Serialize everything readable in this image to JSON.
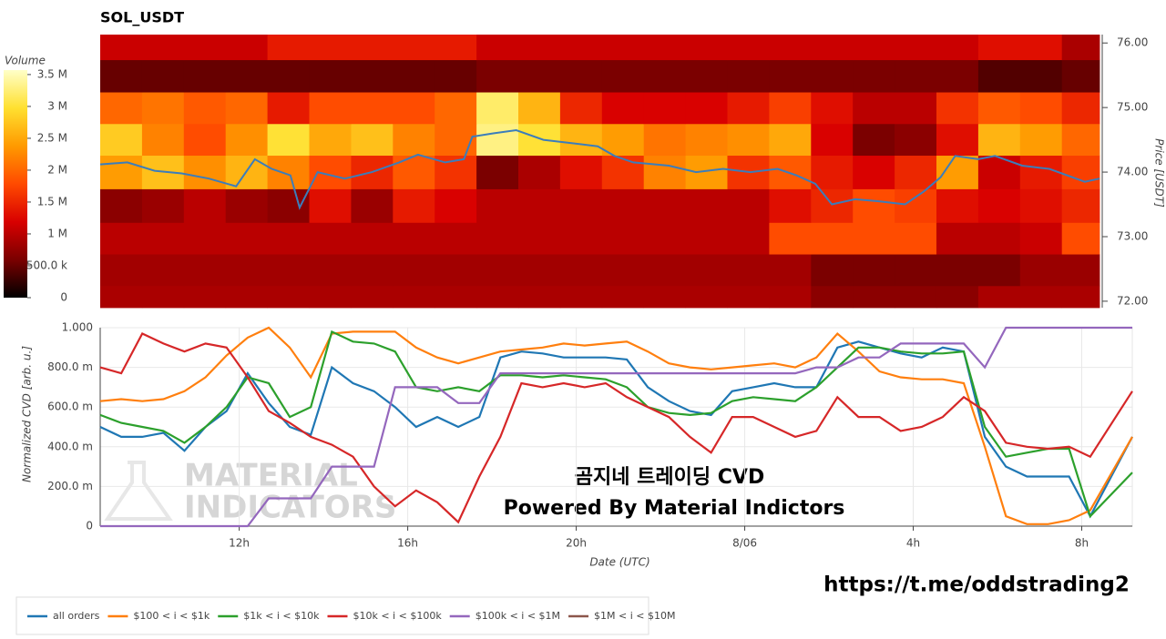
{
  "chart_data": [
    {
      "type": "heatmap",
      "title": "SOL_USDT",
      "xlim": [
        8.7,
        32.6
      ],
      "ylim": [
        71.9,
        76.13
      ],
      "ylabel": "Price [USDT]",
      "yticks": [
        {
          "value": 72,
          "label": "72.00"
        },
        {
          "value": 73,
          "label": "73.00"
        },
        {
          "value": 74,
          "label": "74.00"
        },
        {
          "value": 75,
          "label": "75.00"
        },
        {
          "value": 76,
          "label": "76.00"
        }
      ],
      "x_bins": [
        8.7,
        9.7,
        10.7,
        11.7,
        12.7,
        13.7,
        14.7,
        15.7,
        16.7,
        17.7,
        18.7,
        19.7,
        20.7,
        21.7,
        22.7,
        23.7,
        24.7,
        25.7,
        26.7,
        27.7,
        28.7,
        29.7,
        30.7,
        31.7,
        32.6
      ],
      "y_bins": [
        71.9,
        72.24,
        72.73,
        73.22,
        73.74,
        74.26,
        74.75,
        75.24,
        75.74,
        76.13
      ],
      "values": [
        [
          900000.0,
          900000.0,
          900000.0,
          900000.0,
          900000.0,
          900000.0,
          900000.0,
          900000.0,
          900000.0,
          900000.0,
          900000.0,
          900000.0,
          900000.0,
          900000.0,
          900000.0,
          900000.0,
          900000.0,
          700000.0,
          700000.0,
          700000.0,
          700000.0,
          900000.0,
          900000.0,
          900000.0
        ],
        [
          850000.0,
          850000.0,
          850000.0,
          850000.0,
          850000.0,
          850000.0,
          850000.0,
          850000.0,
          850000.0,
          850000.0,
          850000.0,
          850000.0,
          850000.0,
          850000.0,
          850000.0,
          850000.0,
          850000.0,
          600000.0,
          600000.0,
          600000.0,
          600000.0,
          600000.0,
          800000.0,
          800000.0
        ],
        [
          1000000.0,
          1000000.0,
          1000000.0,
          1000000.0,
          1000000.0,
          1000000.0,
          1000000.0,
          1000000.0,
          1000000.0,
          1000000.0,
          1000000.0,
          1000000.0,
          1000000.0,
          1000000.0,
          1000000.0,
          1000000.0,
          1800000.0,
          1800000.0,
          1800000.0,
          1800000.0,
          1000000.0,
          1000000.0,
          1100000.0,
          1800000.0
        ],
        [
          700000.0,
          800000.0,
          1000000.0,
          800000.0,
          700000.0,
          1300000.0,
          800000.0,
          1400000.0,
          1200000.0,
          1000000.0,
          1000000.0,
          1000000.0,
          1000000.0,
          1000000.0,
          1000000.0,
          1000000.0,
          1300000.0,
          1500000.0,
          1800000.0,
          1700000.0,
          1300000.0,
          1200000.0,
          1300000.0,
          1500000.0
        ],
        [
          2400000.0,
          2700000.0,
          2300000.0,
          2600000.0,
          2200000.0,
          1800000.0,
          1500000.0,
          1900000.0,
          1600000.0,
          600000.0,
          900000.0,
          1300000.0,
          1600000.0,
          2200000.0,
          2400000.0,
          1600000.0,
          1900000.0,
          1400000.0,
          1200000.0,
          1500000.0,
          2400000.0,
          1100000.0,
          1400000.0,
          1700000.0
        ],
        [
          2800000.0,
          2200000.0,
          1800000.0,
          2300000.0,
          3000000.0,
          2500000.0,
          2700000.0,
          2200000.0,
          2000000.0,
          3300000.0,
          3000000.0,
          2600000.0,
          2400000.0,
          2100000.0,
          2200000.0,
          2300000.0,
          2500000.0,
          1200000.0,
          600000.0,
          700000.0,
          1300000.0,
          2600000.0,
          2400000.0,
          2000000.0
        ],
        [
          2000000.0,
          2100000.0,
          1900000.0,
          2000000.0,
          1400000.0,
          1800000.0,
          1800000.0,
          1800000.0,
          2000000.0,
          3200000.0,
          2600000.0,
          1500000.0,
          1200000.0,
          1200000.0,
          1200000.0,
          1400000.0,
          1700000.0,
          1300000.0,
          1000000.0,
          1000000.0,
          1600000.0,
          1900000.0,
          1800000.0,
          1500000.0
        ],
        [
          500000.0,
          500000.0,
          500000.0,
          500000.0,
          500000.0,
          500000.0,
          500000.0,
          500000.0,
          500000.0,
          600000.0,
          600000.0,
          600000.0,
          600000.0,
          600000.0,
          600000.0,
          600000.0,
          600000.0,
          600000.0,
          600000.0,
          600000.0,
          600000.0,
          400000.0,
          400000.0,
          500000.0
        ],
        [
          1100000.0,
          1100000.0,
          1100000.0,
          1100000.0,
          1400000.0,
          1400000.0,
          1400000.0,
          1400000.0,
          1400000.0,
          1100000.0,
          1100000.0,
          1100000.0,
          1100000.0,
          1100000.0,
          1100000.0,
          1100000.0,
          1100000.0,
          1100000.0,
          1100000.0,
          1100000.0,
          1100000.0,
          1300000.0,
          1300000.0,
          900000.0
        ]
      ],
      "colorbar": {
        "label": "Volume",
        "lim": [
          0,
          3570000
        ],
        "colors": [
          "#000000",
          "#7a0000",
          "#d80000",
          "#ff4a00",
          "#ff9a00",
          "#ffe030",
          "#ffffc8"
        ],
        "ticks": [
          0,
          {
            "value": 500000,
            "label": "500.0 k"
          },
          {
            "value": 1000000,
            "label": "1 M"
          },
          {
            "value": 1500000,
            "label": "1.5 M"
          },
          {
            "value": 2000000,
            "label": "2 M"
          },
          {
            "value": 2500000,
            "label": "2.5 M"
          },
          {
            "value": 3000000,
            "label": "3 M"
          },
          {
            "value": 3500000,
            "label": "3.5 M"
          }
        ]
      },
      "price_line": {
        "color": "#3b7dbb",
        "x": [
          8.7,
          9.35,
          10.0,
          10.65,
          11.3,
          11.95,
          12.4,
          12.8,
          13.25,
          13.47,
          13.9,
          14.55,
          15.2,
          15.85,
          16.3,
          16.95,
          17.4,
          17.6,
          18.1,
          18.65,
          19.3,
          19.95,
          20.6,
          21.0,
          21.45,
          22.3,
          22.95,
          23.6,
          24.25,
          24.9,
          25.35,
          25.8,
          26.2,
          26.75,
          27.3,
          27.95,
          28.4,
          28.8,
          29.15,
          29.7,
          30.1,
          30.75,
          31.4,
          32.25,
          32.6
        ],
        "values": [
          74.12,
          74.15,
          74.02,
          73.98,
          73.9,
          73.78,
          74.2,
          74.05,
          73.95,
          73.45,
          74.0,
          73.9,
          74.0,
          74.15,
          74.27,
          74.15,
          74.2,
          74.55,
          74.6,
          74.65,
          74.5,
          74.45,
          74.4,
          74.25,
          74.15,
          74.1,
          74.0,
          74.05,
          74.0,
          74.05,
          73.95,
          73.82,
          73.5,
          73.58,
          73.55,
          73.5,
          73.7,
          73.92,
          74.25,
          74.2,
          74.25,
          74.1,
          74.05,
          73.85,
          73.9
        ]
      }
    },
    {
      "type": "line",
      "xlabel": "Date (UTC)",
      "ylabel": "Normalized CVD [arb. u.]",
      "xlim": [
        8.7,
        33.2
      ],
      "ylim": [
        0,
        1
      ],
      "grid": true,
      "legend": "bottom",
      "xticks": [
        {
          "value": 12,
          "label": "12h"
        },
        {
          "value": 16,
          "label": "16h"
        },
        {
          "value": 20,
          "label": "20h"
        },
        {
          "value": 24,
          "label": "8/06"
        },
        {
          "value": 28,
          "label": "4h"
        },
        {
          "value": 32,
          "label": "8h"
        }
      ],
      "yticks": [
        0,
        {
          "value": 0.2,
          "label": "200.0 m"
        },
        {
          "value": 0.4,
          "label": "400.0 m"
        },
        {
          "value": 0.6,
          "label": "600.0 m"
        },
        {
          "value": 0.8,
          "label": "800.0 m"
        },
        {
          "value": 1,
          "label": "1.000"
        }
      ],
      "x": [
        8.7,
        9.2,
        9.7,
        10.2,
        10.7,
        11.2,
        11.7,
        12.2,
        12.7,
        13.2,
        13.7,
        14.2,
        14.7,
        15.2,
        15.7,
        16.2,
        16.7,
        17.2,
        17.7,
        18.2,
        18.7,
        19.2,
        19.7,
        20.2,
        20.7,
        21.2,
        21.7,
        22.2,
        22.7,
        23.2,
        23.7,
        24.2,
        24.7,
        25.2,
        25.7,
        26.2,
        26.7,
        27.2,
        27.7,
        28.2,
        28.7,
        29.2,
        29.7,
        30.2,
        30.7,
        31.2,
        31.7,
        32.2,
        33.2
      ],
      "series": [
        {
          "name": "all orders",
          "color": "#1f77b4",
          "values": [
            0.5,
            0.45,
            0.45,
            0.47,
            0.38,
            0.5,
            0.58,
            0.77,
            0.62,
            0.5,
            0.46,
            0.8,
            0.72,
            0.68,
            0.6,
            0.5,
            0.55,
            0.5,
            0.55,
            0.85,
            0.88,
            0.87,
            0.85,
            0.85,
            0.85,
            0.84,
            0.7,
            0.63,
            0.58,
            0.56,
            0.68,
            0.7,
            0.72,
            0.7,
            0.7,
            0.9,
            0.93,
            0.9,
            0.87,
            0.85,
            0.9,
            0.88,
            0.45,
            0.3,
            0.25,
            0.25,
            0.25,
            0.05,
            0.45
          ]
        },
        {
          "name": "$100 < i < $1k",
          "color": "#ff7f0e",
          "values": [
            0.63,
            0.64,
            0.63,
            0.64,
            0.68,
            0.75,
            0.86,
            0.95,
            1,
            0.9,
            0.75,
            0.97,
            0.98,
            0.98,
            0.98,
            0.9,
            0.85,
            0.82,
            0.85,
            0.88,
            0.89,
            0.9,
            0.92,
            0.91,
            0.92,
            0.93,
            0.88,
            0.82,
            0.8,
            0.79,
            0.8,
            0.81,
            0.82,
            0.8,
            0.85,
            0.97,
            0.88,
            0.78,
            0.75,
            0.74,
            0.74,
            0.72,
            0.4,
            0.05,
            0.01,
            0.01,
            0.03,
            0.08,
            0.45
          ]
        },
        {
          "name": "$1k < i < $10k",
          "color": "#2ca02c",
          "values": [
            0.56,
            0.52,
            0.5,
            0.48,
            0.42,
            0.5,
            0.6,
            0.75,
            0.72,
            0.55,
            0.6,
            0.98,
            0.93,
            0.92,
            0.88,
            0.7,
            0.68,
            0.7,
            0.68,
            0.76,
            0.76,
            0.75,
            0.76,
            0.75,
            0.74,
            0.7,
            0.6,
            0.57,
            0.56,
            0.57,
            0.63,
            0.65,
            0.64,
            0.63,
            0.7,
            0.8,
            0.9,
            0.9,
            0.88,
            0.87,
            0.87,
            0.88,
            0.5,
            0.35,
            0.37,
            0.39,
            0.39,
            0.05,
            0.27
          ]
        },
        {
          "name": "$10k < i < $100k",
          "color": "#d62728",
          "values": [
            0.8,
            0.77,
            0.97,
            0.92,
            0.88,
            0.92,
            0.9,
            0.75,
            0.58,
            0.52,
            0.45,
            0.41,
            0.35,
            0.2,
            0.1,
            0.18,
            0.12,
            0.02,
            0.25,
            0.45,
            0.72,
            0.7,
            0.72,
            0.7,
            0.72,
            0.65,
            0.6,
            0.55,
            0.45,
            0.37,
            0.55,
            0.55,
            0.5,
            0.45,
            0.48,
            0.65,
            0.55,
            0.55,
            0.48,
            0.5,
            0.55,
            0.65,
            0.58,
            0.42,
            0.4,
            0.39,
            0.4,
            0.35,
            0.68
          ]
        },
        {
          "name": "$100k < i < $1M",
          "color": "#9467bd",
          "values": [
            0,
            0,
            0,
            0,
            0,
            0,
            0,
            0,
            0.14,
            0.14,
            0.14,
            0.3,
            0.3,
            0.3,
            0.7,
            0.7,
            0.7,
            0.62,
            0.62,
            0.77,
            0.77,
            0.77,
            0.77,
            0.77,
            0.77,
            0.77,
            0.77,
            0.77,
            0.77,
            0.77,
            0.77,
            0.77,
            0.77,
            0.77,
            0.8,
            0.8,
            0.85,
            0.85,
            0.92,
            0.92,
            0.92,
            0.92,
            0.8,
            1,
            1,
            1,
            1,
            1,
            1
          ]
        },
        {
          "name": "$1M < i < $10M",
          "color": "#8c564b",
          "values": [
            null,
            null,
            null,
            null,
            null,
            null,
            null,
            null,
            null,
            null,
            null,
            null,
            null,
            null,
            null,
            null,
            null,
            null,
            null,
            null,
            null,
            null,
            null,
            null,
            null,
            null,
            null,
            null,
            null,
            null,
            null,
            null,
            null,
            null,
            null,
            null,
            null,
            null,
            null,
            null,
            null,
            null,
            null,
            null,
            null,
            null,
            null,
            null,
            null
          ]
        }
      ],
      "watermark": [
        "MATERIAL",
        "INDICATORS"
      ],
      "annotations": [
        "곰지네 트레이딩 CVD",
        "Powered By Material Indictors"
      ]
    }
  ],
  "link": "https://t.me/oddstrading2"
}
